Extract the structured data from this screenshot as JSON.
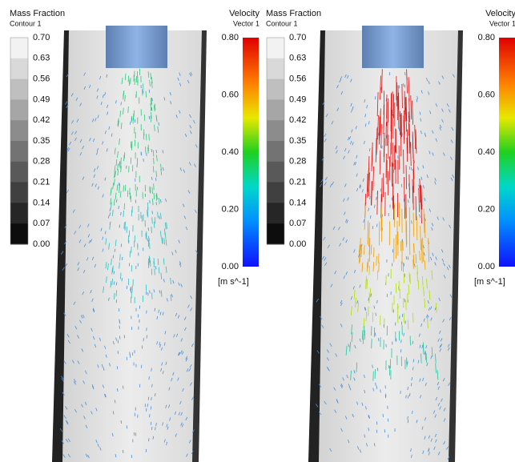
{
  "panels": [
    {
      "mass_fraction": {
        "title": "Mass Fraction",
        "subtitle": "Contour 1",
        "ticks": [
          "0.70",
          "0.63",
          "0.56",
          "0.49",
          "0.42",
          "0.35",
          "0.28",
          "0.21",
          "0.14",
          "0.07",
          "0.00"
        ]
      },
      "velocity": {
        "title": "Velocity",
        "subtitle": "Vector 1",
        "ticks": [
          "0.80",
          "0.60",
          "0.40",
          "0.20",
          "0.00"
        ],
        "unit": "[m s^-1]"
      }
    },
    {
      "mass_fraction": {
        "title": "Mass Fraction",
        "subtitle": "Contour 1",
        "ticks": [
          "0.70",
          "0.63",
          "0.56",
          "0.49",
          "0.42",
          "0.35",
          "0.28",
          "0.21",
          "0.14",
          "0.07",
          "0.00"
        ]
      },
      "velocity": {
        "title": "Velocity",
        "subtitle": "Vector 1",
        "ticks": [
          "0.80",
          "0.60",
          "0.40",
          "0.20",
          "0.00"
        ],
        "unit": "[m s^-1]"
      }
    }
  ]
}
